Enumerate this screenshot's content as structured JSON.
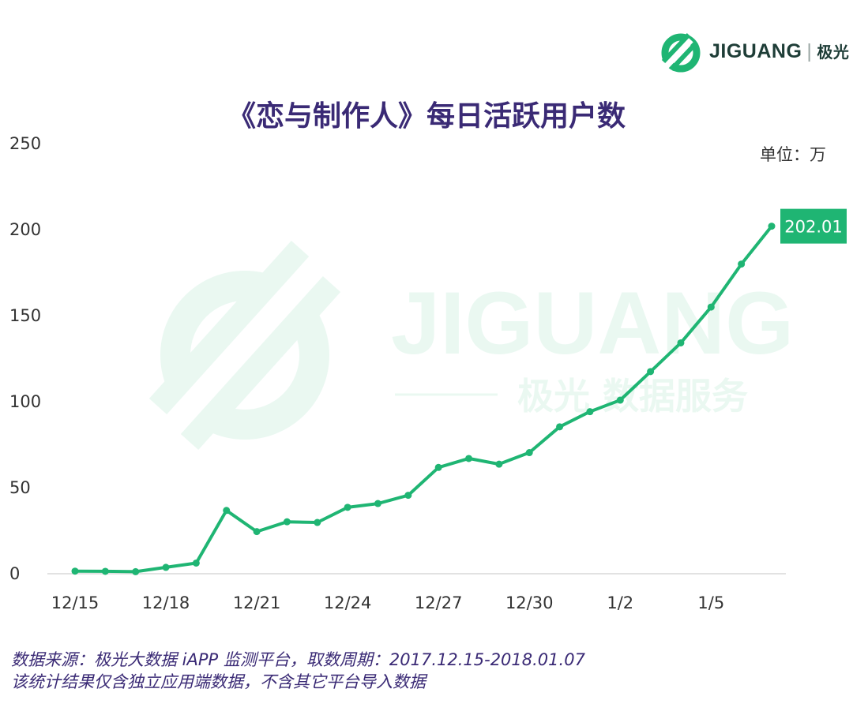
{
  "brand": {
    "name": "JIGUANG",
    "separator": "|",
    "name_cn": "极光",
    "watermark_name": "JIGUANG",
    "watermark_tagline": "极光 数据服务",
    "color": "#1fb573"
  },
  "chart_data": {
    "type": "line",
    "title": "《恋与制作人》每日活跃用户数",
    "unit_label": "单位：万",
    "ylim": [
      0,
      250
    ],
    "y_ticks": [
      0,
      50,
      100,
      150,
      200,
      250
    ],
    "x_ticks": [
      "12/15",
      "12/18",
      "12/21",
      "12/24",
      "12/27",
      "12/30",
      "1/2",
      "1/5"
    ],
    "x": [
      "12/15",
      "12/16",
      "12/17",
      "12/18",
      "12/19",
      "12/20",
      "12/21",
      "12/22",
      "12/23",
      "12/24",
      "12/25",
      "12/26",
      "12/27",
      "12/28",
      "12/29",
      "12/30",
      "12/31",
      "1/1",
      "1/2",
      "1/3",
      "1/4",
      "1/5",
      "1/6",
      "1/7"
    ],
    "series": [
      {
        "values": [
          1.5,
          1.4,
          1.2,
          3.7,
          6.2,
          36.8,
          24.5,
          30.2,
          29.8,
          38.6,
          40.8,
          45.6,
          61.8,
          67.0,
          63.7,
          70.4,
          85.4,
          94.2,
          100.9,
          117.5,
          134.2,
          155.0,
          180.0,
          202.01
        ],
        "color": "#1fb573"
      }
    ],
    "annotation": {
      "text": "202.01",
      "color": "#1fb573"
    },
    "grid": false
  },
  "footnote": {
    "line1": "数据来源：极光大数据 iAPP 监测平台，取数周期：2017.12.15-2018.01.07",
    "line2": "该统计结果仅含独立应用端数据，不含其它平台导入数据"
  }
}
